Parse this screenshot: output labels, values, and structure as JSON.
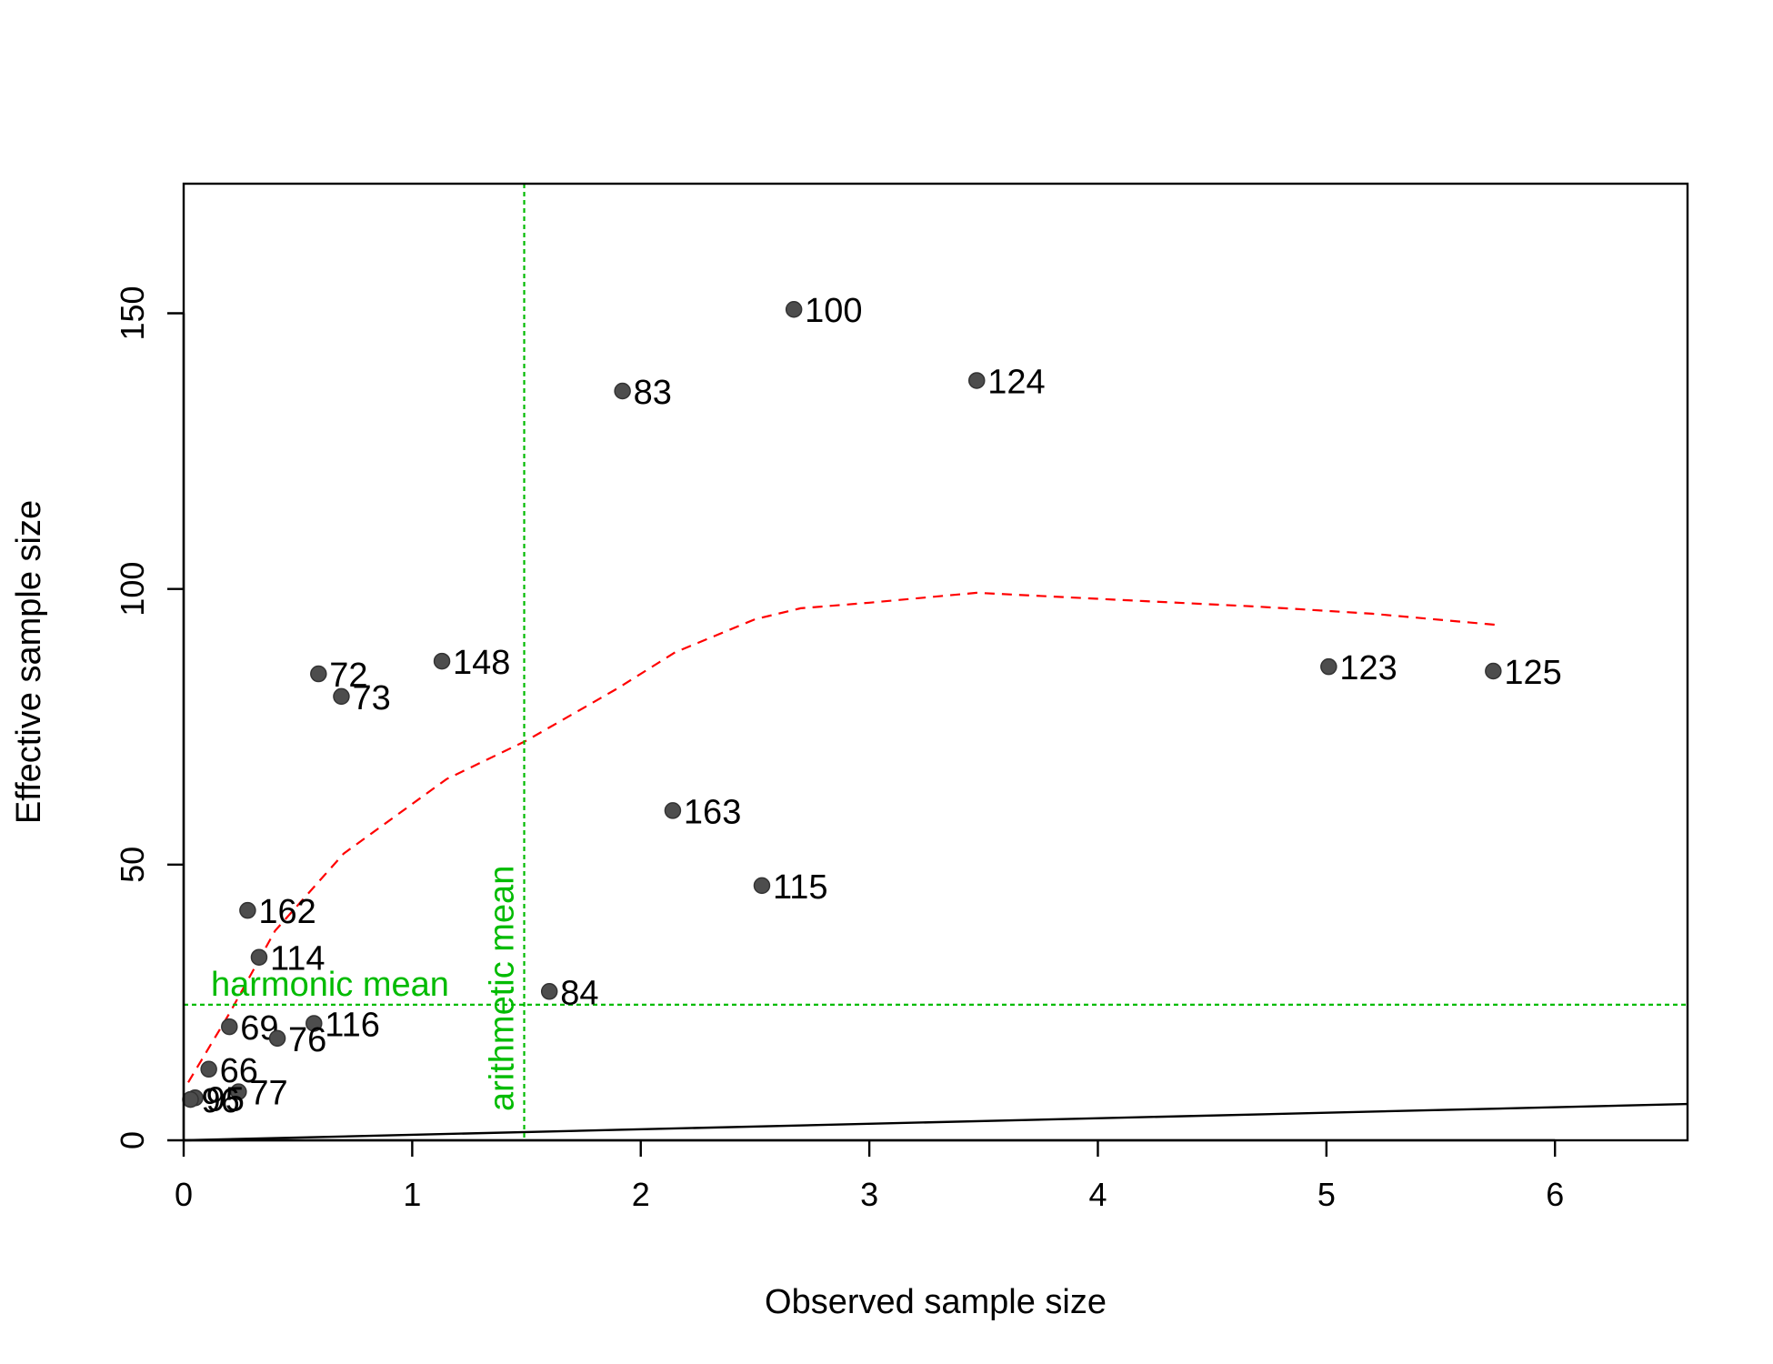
{
  "chart_data": {
    "type": "scatter",
    "title": "",
    "xlabel": "Observed sample size",
    "ylabel": "Effective sample size",
    "xlim": [
      0,
      6.58
    ],
    "ylim": [
      0,
      173.5
    ],
    "x_ticks": [
      0,
      1,
      2,
      3,
      4,
      5,
      6
    ],
    "y_ticks": [
      0,
      50,
      100,
      150
    ],
    "grid": false,
    "points": [
      {
        "label": "100",
        "x": 2.67,
        "y": 150.7
      },
      {
        "label": "124",
        "x": 3.47,
        "y": 137.8
      },
      {
        "label": "83",
        "x": 1.92,
        "y": 135.9
      },
      {
        "label": "148",
        "x": 1.13,
        "y": 86.9
      },
      {
        "label": "123",
        "x": 5.01,
        "y": 85.9
      },
      {
        "label": "125",
        "x": 5.73,
        "y": 85.1
      },
      {
        "label": "72",
        "x": 0.59,
        "y": 84.6
      },
      {
        "label": "73",
        "x": 0.69,
        "y": 80.5
      },
      {
        "label": "163",
        "x": 2.14,
        "y": 59.8
      },
      {
        "label": "115",
        "x": 2.53,
        "y": 46.2
      },
      {
        "label": "162",
        "x": 0.28,
        "y": 41.7
      },
      {
        "label": "114",
        "x": 0.33,
        "y": 33.2
      },
      {
        "label": "84",
        "x": 1.6,
        "y": 27.0
      },
      {
        "label": "116",
        "x": 0.57,
        "y": 21.2
      },
      {
        "label": "69",
        "x": 0.2,
        "y": 20.6
      },
      {
        "label": "76",
        "x": 0.41,
        "y": 18.5
      },
      {
        "label": "66",
        "x": 0.11,
        "y": 12.9
      },
      {
        "label": "77",
        "x": 0.24,
        "y": 8.8
      },
      {
        "label": "95",
        "x": 0.05,
        "y": 7.7
      },
      {
        "label": "96",
        "x": 0.03,
        "y": 7.4
      }
    ],
    "reference_lines": {
      "identity_line": {
        "x0": 0,
        "y0": 0,
        "x1": 6.58,
        "y1": 6.58
      },
      "arithmetic_mean": {
        "x": 1.49,
        "label": "arithmetic mean"
      },
      "harmonic_mean": {
        "y": 24.6,
        "label": "harmonic mean"
      },
      "smooth_trend": [
        [
          0.02,
          10.5
        ],
        [
          0.2,
          23
        ],
        [
          0.4,
          38
        ],
        [
          0.7,
          52
        ],
        [
          1.15,
          65.5
        ],
        [
          1.5,
          72.5
        ],
        [
          1.9,
          82
        ],
        [
          2.15,
          88.5
        ],
        [
          2.5,
          94.5
        ],
        [
          2.7,
          96.5
        ],
        [
          3.0,
          97.5
        ],
        [
          3.47,
          99.3
        ],
        [
          4.2,
          97.8
        ],
        [
          4.7,
          96.8
        ],
        [
          5.2,
          95.5
        ],
        [
          5.74,
          93.5
        ]
      ]
    },
    "colors": {
      "points": "#4d4d4d",
      "reference_means": "#00bb00",
      "trend": "#ff0000",
      "identity": "#000000"
    }
  }
}
